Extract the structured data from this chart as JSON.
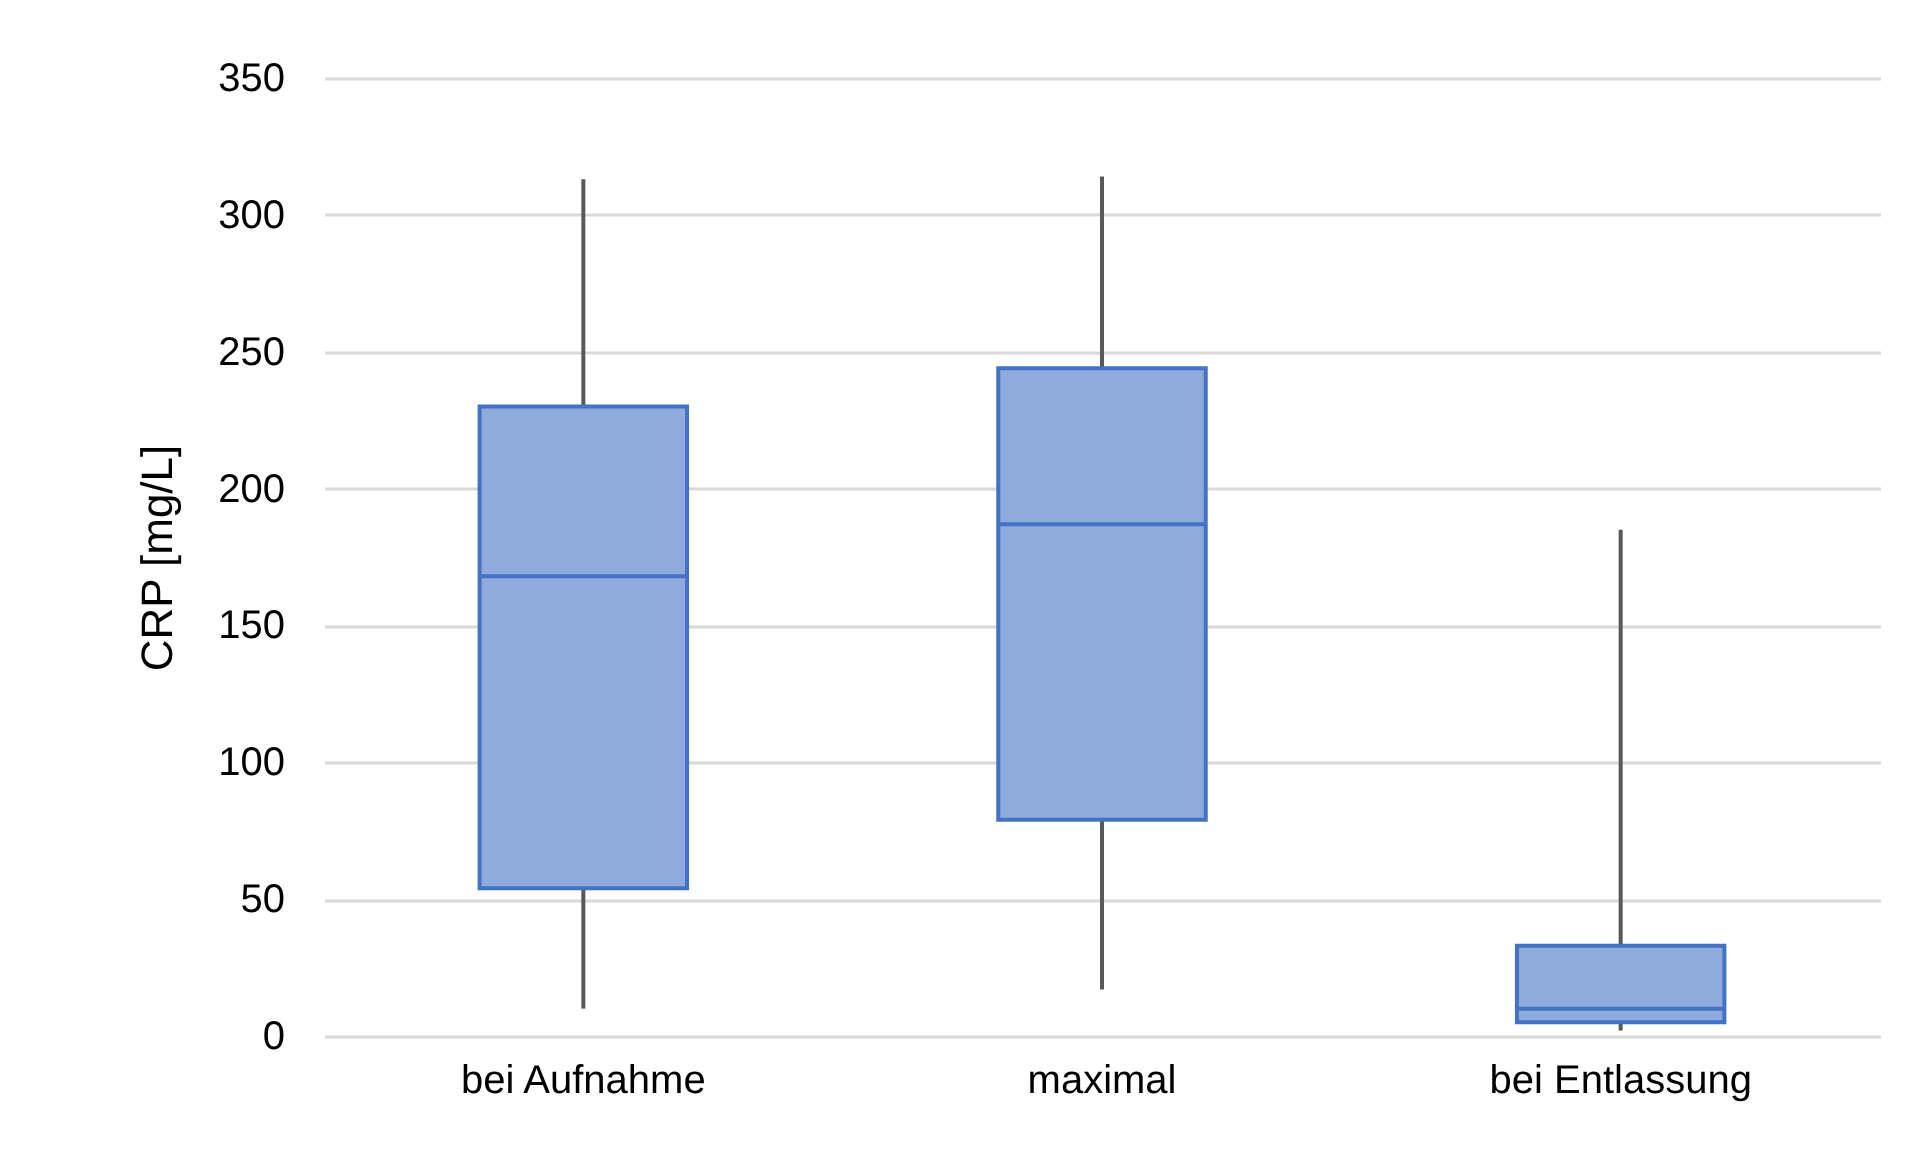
{
  "chart_data": {
    "type": "box",
    "ylabel": "CRP [mg/L]",
    "categories": [
      "bei Aufnahme",
      "maximal",
      "bei Entlassung"
    ],
    "series": [
      {
        "color": "#8faadc",
        "boxes": [
          {
            "low": 10,
            "q1": 54,
            "median": 168,
            "q3": 230,
            "high": 313
          },
          {
            "low": 17,
            "q1": 79,
            "median": 187,
            "q3": 244,
            "high": 314
          },
          {
            "low": 2,
            "q1": 5,
            "median": 10,
            "q3": 33,
            "high": 185
          }
        ]
      }
    ],
    "ylim": [
      0,
      350
    ],
    "yticks": [
      0,
      50,
      100,
      150,
      200,
      250,
      300,
      350
    ],
    "grid": "y"
  }
}
